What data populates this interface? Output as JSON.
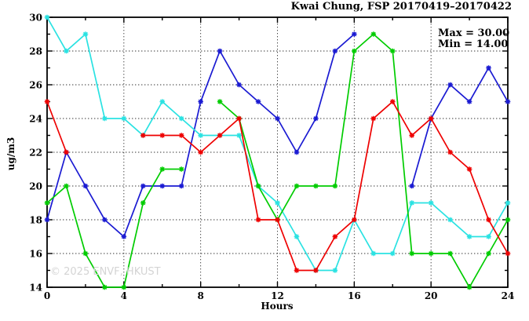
{
  "title": "Kwai Chung, FSP 20170419–20170422",
  "stats": {
    "max_label": "Max = 30.00",
    "min_label": "Min = 14.00"
  },
  "watermark": "© 2025 ENVF, HKUST",
  "chart_data": {
    "type": "line",
    "title": "Kwai Chung, FSP 20170419–20170422",
    "xlabel": "Hours",
    "ylabel": "ug/m3",
    "xlim": [
      0,
      24
    ],
    "ylim": [
      14,
      30
    ],
    "x_major_ticks": [
      0,
      4,
      8,
      12,
      16,
      20,
      24
    ],
    "x_minor_ticks": [
      2,
      6,
      10,
      14,
      18,
      22
    ],
    "y_major_ticks": [
      14,
      16,
      18,
      20,
      22,
      24,
      26,
      28,
      30
    ],
    "y_minor_ticks": [
      15,
      17,
      19,
      21,
      23,
      25,
      27,
      29
    ],
    "grid": true,
    "legend": "none",
    "x": [
      0,
      1,
      2,
      3,
      4,
      5,
      6,
      7,
      8,
      9,
      10,
      11,
      12,
      13,
      14,
      15,
      16,
      17,
      18,
      19,
      20,
      21,
      22,
      23,
      24
    ],
    "series": [
      {
        "name": "blue",
        "color": "#1a1ad2",
        "values": [
          18,
          22,
          20,
          18,
          17,
          20,
          20,
          20,
          25,
          28,
          26,
          25,
          24,
          22,
          24,
          28,
          29,
          null,
          null,
          20,
          24,
          26,
          25,
          27,
          25
        ]
      },
      {
        "name": "cyan",
        "color": "#2ae2e2",
        "values": [
          30,
          28,
          29,
          24,
          24,
          23,
          25,
          24,
          23,
          23,
          23,
          20,
          19,
          17,
          15,
          15,
          18,
          16,
          16,
          19,
          19,
          18,
          17,
          17,
          19
        ]
      },
      {
        "name": "green",
        "color": "#00cc00",
        "values": [
          19,
          20,
          16,
          14,
          14,
          19,
          21,
          21,
          null,
          25,
          24,
          20,
          18,
          20,
          20,
          20,
          28,
          29,
          28,
          16,
          16,
          16,
          14,
          16,
          18
        ]
      },
      {
        "name": "red",
        "color": "#ee0000",
        "values": [
          25,
          22,
          null,
          null,
          null,
          23,
          23,
          23,
          22,
          23,
          24,
          18,
          18,
          15,
          15,
          17,
          18,
          24,
          25,
          23,
          24,
          22,
          21,
          18,
          16
        ]
      }
    ]
  }
}
